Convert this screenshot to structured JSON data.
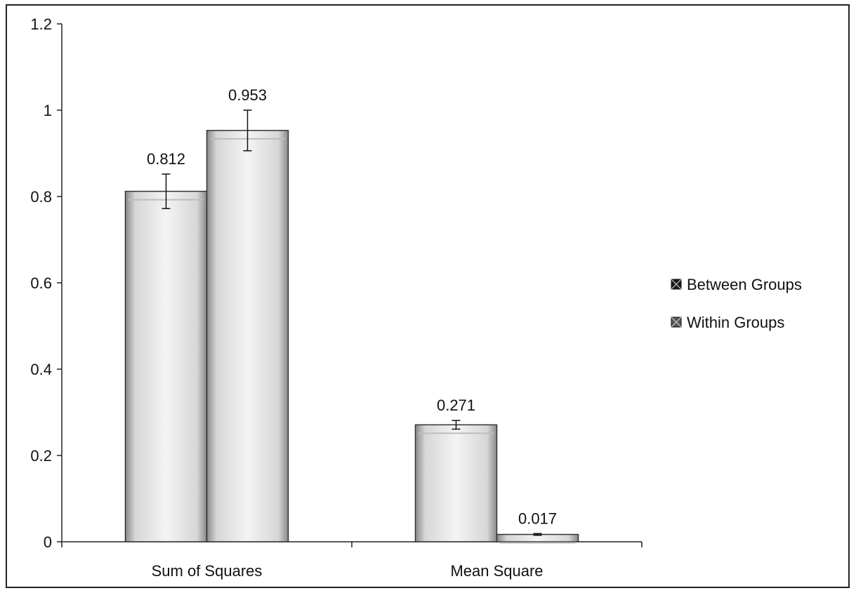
{
  "chart_data": {
    "type": "bar",
    "title": "",
    "xlabel": "",
    "ylabel": "",
    "categories": [
      "Sum of Squares",
      "Mean Square"
    ],
    "series": [
      {
        "name": "Between Groups",
        "values": [
          0.812,
          0.271
        ],
        "error": [
          0.04,
          0.01
        ]
      },
      {
        "name": "Within Groups",
        "values": [
          0.953,
          0.017
        ],
        "error": [
          0.047,
          0.002
        ]
      }
    ],
    "data_labels": [
      [
        "0.812",
        "0.271"
      ],
      [
        "0.953",
        "0.017"
      ]
    ],
    "ylim": [
      0,
      1.2
    ],
    "yticks": [
      0,
      0.2,
      0.4,
      0.6,
      0.8,
      1,
      1.2
    ],
    "ytick_labels": [
      "0",
      "0.2",
      "0.4",
      "0.6",
      "0.8",
      "1",
      "1.2"
    ],
    "grid": false,
    "legend_position": "right",
    "error_bars": true,
    "colors": {
      "bar_edge": "#333333",
      "bar_fill": "#efefef",
      "axis": "#222222"
    }
  }
}
